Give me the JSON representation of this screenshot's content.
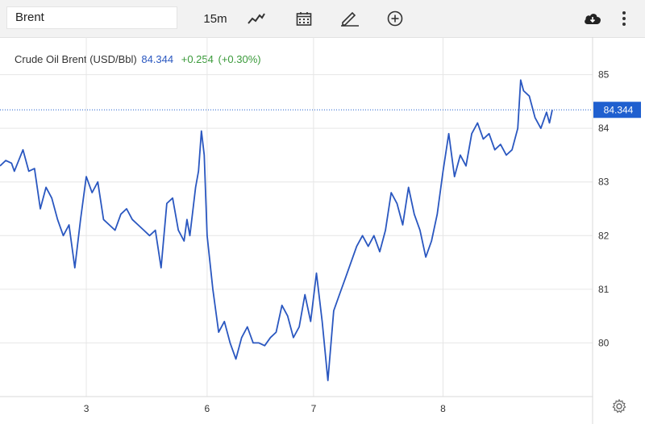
{
  "toolbar": {
    "symbol": "Brent",
    "interval": "15m",
    "icons": [
      "line-chart-icon",
      "calendar-icon",
      "draw-pencil-icon",
      "add-circle-icon",
      "cloud-download-icon",
      "more-vertical-icon",
      "gear-icon"
    ]
  },
  "legend": {
    "name": "Crude Oil Brent (USD/Bbl)",
    "price": "84.344",
    "change": "+0.254",
    "change_pct": "(+0.30%)"
  },
  "colors": {
    "line": "#2a57c0",
    "current_price_badge": "#1f5fcf",
    "change_positive": "#3a9a3a",
    "grid": "#e6e6e6"
  },
  "chart_data": {
    "type": "line",
    "title": "Crude Oil Brent (USD/Bbl)",
    "ylim": [
      79,
      85.7
    ],
    "y_ticks": [
      "80",
      "81",
      "82",
      "83",
      "84",
      "85"
    ],
    "y_tick_values": [
      80,
      81,
      82,
      83,
      84,
      85
    ],
    "x_ticks": [
      "3",
      "6",
      "7",
      "8"
    ],
    "x_tick_positions": [
      0.7,
      2.8,
      4.65,
      6.9
    ],
    "xlim": [
      -0.8,
      9.5
    ],
    "current_price": 84.344,
    "current_price_label": "84.344",
    "grid": true,
    "series": [
      {
        "values": [
          [
            -0.8,
            83.3
          ],
          [
            -0.7,
            83.4
          ],
          [
            -0.6,
            83.35
          ],
          [
            -0.55,
            83.2
          ],
          [
            -0.4,
            83.6
          ],
          [
            -0.3,
            83.2
          ],
          [
            -0.2,
            83.25
          ],
          [
            -0.1,
            82.5
          ],
          [
            0.0,
            82.9
          ],
          [
            0.1,
            82.7
          ],
          [
            0.2,
            82.3
          ],
          [
            0.3,
            82.0
          ],
          [
            0.4,
            82.2
          ],
          [
            0.5,
            81.4
          ],
          [
            0.6,
            82.3
          ],
          [
            0.7,
            83.1
          ],
          [
            0.8,
            82.8
          ],
          [
            0.9,
            83.0
          ],
          [
            1.0,
            82.3
          ],
          [
            1.1,
            82.2
          ],
          [
            1.2,
            82.1
          ],
          [
            1.3,
            82.4
          ],
          [
            1.4,
            82.5
          ],
          [
            1.5,
            82.3
          ],
          [
            1.6,
            82.2
          ],
          [
            1.7,
            82.1
          ],
          [
            1.8,
            82.0
          ],
          [
            1.9,
            82.1
          ],
          [
            2.0,
            81.4
          ],
          [
            2.1,
            82.6
          ],
          [
            2.2,
            82.7
          ],
          [
            2.3,
            82.1
          ],
          [
            2.4,
            81.9
          ],
          [
            2.45,
            82.3
          ],
          [
            2.5,
            82.0
          ],
          [
            2.6,
            82.9
          ],
          [
            2.65,
            83.2
          ],
          [
            2.7,
            83.95
          ],
          [
            2.75,
            83.5
          ],
          [
            2.8,
            82.0
          ],
          [
            2.9,
            81.0
          ],
          [
            3.0,
            80.2
          ],
          [
            3.1,
            80.4
          ],
          [
            3.2,
            80.0
          ],
          [
            3.3,
            79.7
          ],
          [
            3.4,
            80.1
          ],
          [
            3.5,
            80.3
          ],
          [
            3.6,
            80.0
          ],
          [
            3.7,
            80.0
          ],
          [
            3.8,
            79.95
          ],
          [
            3.9,
            80.1
          ],
          [
            4.0,
            80.2
          ],
          [
            4.1,
            80.7
          ],
          [
            4.2,
            80.5
          ],
          [
            4.3,
            80.1
          ],
          [
            4.4,
            80.3
          ],
          [
            4.5,
            80.9
          ],
          [
            4.6,
            80.4
          ],
          [
            4.7,
            81.3
          ],
          [
            4.8,
            80.4
          ],
          [
            4.9,
            79.3
          ],
          [
            5.0,
            80.6
          ],
          [
            5.1,
            80.9
          ],
          [
            5.2,
            81.2
          ],
          [
            5.3,
            81.5
          ],
          [
            5.4,
            81.8
          ],
          [
            5.5,
            82.0
          ],
          [
            5.6,
            81.8
          ],
          [
            5.7,
            82.0
          ],
          [
            5.8,
            81.7
          ],
          [
            5.9,
            82.1
          ],
          [
            6.0,
            82.8
          ],
          [
            6.1,
            82.6
          ],
          [
            6.2,
            82.2
          ],
          [
            6.3,
            82.9
          ],
          [
            6.4,
            82.4
          ],
          [
            6.5,
            82.1
          ],
          [
            6.6,
            81.6
          ],
          [
            6.7,
            81.9
          ],
          [
            6.8,
            82.4
          ],
          [
            6.9,
            83.2
          ],
          [
            7.0,
            83.9
          ],
          [
            7.1,
            83.1
          ],
          [
            7.2,
            83.5
          ],
          [
            7.3,
            83.3
          ],
          [
            7.4,
            83.9
          ],
          [
            7.5,
            84.1
          ],
          [
            7.6,
            83.8
          ],
          [
            7.7,
            83.9
          ],
          [
            7.8,
            83.6
          ],
          [
            7.9,
            83.7
          ],
          [
            8.0,
            83.5
          ],
          [
            8.1,
            83.6
          ],
          [
            8.2,
            84.0
          ],
          [
            8.25,
            84.9
          ],
          [
            8.3,
            84.7
          ],
          [
            8.4,
            84.6
          ],
          [
            8.5,
            84.2
          ],
          [
            8.6,
            84.0
          ],
          [
            8.7,
            84.3
          ],
          [
            8.75,
            84.1
          ],
          [
            8.8,
            84.344
          ]
        ]
      }
    ]
  }
}
